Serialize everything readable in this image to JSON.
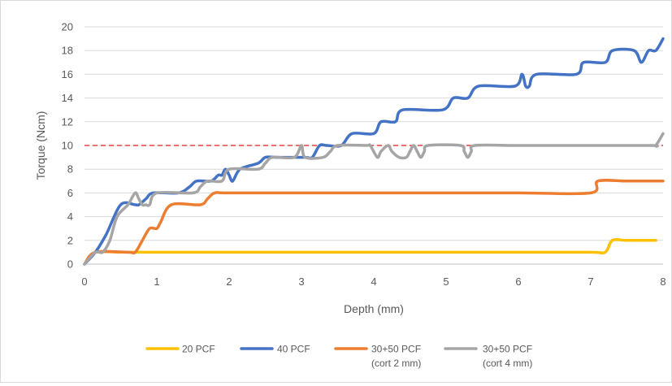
{
  "chart_data": {
    "type": "line",
    "xlabel": "Depth (mm)",
    "ylabel": "Torque (Ncm)",
    "xlim": [
      0,
      8
    ],
    "ylim": [
      0,
      20
    ],
    "x_ticks": [
      "0",
      "1",
      "2",
      "3",
      "4",
      "5",
      "6",
      "7",
      "8"
    ],
    "y_ticks": [
      "0",
      "2",
      "4",
      "6",
      "8",
      "10",
      "12",
      "14",
      "16",
      "18",
      "20"
    ],
    "grid": "horizontal",
    "legend_position": "bottom",
    "reference_line": {
      "y": 10,
      "color": "#e04040",
      "style": "dashed"
    },
    "series": [
      {
        "name": "20 PCF",
        "legend_line1": "20 PCF",
        "legend_line2": "",
        "color": "#ffc000",
        "points": [
          [
            0,
            0
          ],
          [
            0.15,
            1
          ],
          [
            0.5,
            1
          ],
          [
            1,
            1
          ],
          [
            2,
            1
          ],
          [
            3,
            1
          ],
          [
            4,
            1
          ],
          [
            5,
            1
          ],
          [
            6,
            1
          ],
          [
            7,
            1
          ],
          [
            7.2,
            1
          ],
          [
            7.3,
            2
          ],
          [
            7.5,
            2
          ],
          [
            7.9,
            2
          ]
        ]
      },
      {
        "name": "40 PCF",
        "legend_line1": "40 PCF",
        "legend_line2": "",
        "color": "#4472c4",
        "points": [
          [
            0,
            0
          ],
          [
            0.15,
            1
          ],
          [
            0.3,
            2.5
          ],
          [
            0.5,
            5
          ],
          [
            0.7,
            5
          ],
          [
            0.75,
            5
          ],
          [
            0.85,
            5.5
          ],
          [
            0.95,
            6
          ],
          [
            1.3,
            6
          ],
          [
            1.45,
            6.5
          ],
          [
            1.55,
            7
          ],
          [
            1.75,
            7
          ],
          [
            1.85,
            7.5
          ],
          [
            1.9,
            7.5
          ],
          [
            1.95,
            8
          ],
          [
            2.0,
            7.5
          ],
          [
            2.05,
            7
          ],
          [
            2.15,
            8
          ],
          [
            2.4,
            8.5
          ],
          [
            2.5,
            9
          ],
          [
            2.65,
            9
          ],
          [
            2.75,
            9
          ],
          [
            3.05,
            9
          ],
          [
            3.15,
            9
          ],
          [
            3.25,
            10
          ],
          [
            3.35,
            10
          ],
          [
            3.55,
            10
          ],
          [
            3.7,
            11
          ],
          [
            4.0,
            11
          ],
          [
            4.1,
            12
          ],
          [
            4.3,
            12
          ],
          [
            4.4,
            13
          ],
          [
            4.95,
            13
          ],
          [
            5.1,
            14
          ],
          [
            5.3,
            14
          ],
          [
            5.45,
            15
          ],
          [
            5.95,
            15
          ],
          [
            6.05,
            16
          ],
          [
            6.1,
            15
          ],
          [
            6.15,
            15
          ],
          [
            6.25,
            16
          ],
          [
            6.8,
            16
          ],
          [
            6.9,
            17
          ],
          [
            7.2,
            17
          ],
          [
            7.3,
            18
          ],
          [
            7.6,
            18
          ],
          [
            7.7,
            17
          ],
          [
            7.8,
            18
          ],
          [
            7.9,
            18
          ],
          [
            8.0,
            19
          ]
        ]
      },
      {
        "name": "30+50 PCF (cort 2 mm)",
        "legend_line1": "30+50 PCF",
        "legend_line2": "(cort 2 mm)",
        "color": "#ed7d31",
        "points": [
          [
            0,
            0
          ],
          [
            0.15,
            1
          ],
          [
            0.6,
            1
          ],
          [
            0.7,
            1
          ],
          [
            0.8,
            2
          ],
          [
            0.9,
            3
          ],
          [
            1.0,
            3
          ],
          [
            1.05,
            3.5
          ],
          [
            1.2,
            5
          ],
          [
            1.6,
            5
          ],
          [
            1.7,
            5.5
          ],
          [
            1.8,
            6
          ],
          [
            2.0,
            6
          ],
          [
            3,
            6
          ],
          [
            4,
            6
          ],
          [
            5,
            6
          ],
          [
            6,
            6
          ],
          [
            7,
            6
          ],
          [
            7.1,
            7
          ],
          [
            7.5,
            7
          ],
          [
            8.0,
            7
          ]
        ]
      },
      {
        "name": "30+50 PCF (cort 4 mm)",
        "legend_line1": "30+50 PCF",
        "legend_line2": "(cort 4 mm)",
        "color": "#a5a5a5",
        "points": [
          [
            0,
            0
          ],
          [
            0.15,
            1
          ],
          [
            0.25,
            1
          ],
          [
            0.35,
            2
          ],
          [
            0.45,
            4
          ],
          [
            0.6,
            5
          ],
          [
            0.7,
            6
          ],
          [
            0.75,
            5.5
          ],
          [
            0.8,
            5
          ],
          [
            0.85,
            5
          ],
          [
            0.9,
            5
          ],
          [
            1.0,
            6
          ],
          [
            1.5,
            6
          ],
          [
            1.6,
            6.5
          ],
          [
            1.7,
            7
          ],
          [
            1.9,
            7
          ],
          [
            2.0,
            8
          ],
          [
            2.4,
            8
          ],
          [
            2.5,
            8.5
          ],
          [
            2.6,
            9
          ],
          [
            2.9,
            9
          ],
          [
            3.0,
            10
          ],
          [
            3.05,
            9
          ],
          [
            3.3,
            9
          ],
          [
            3.4,
            9.5
          ],
          [
            3.5,
            10
          ],
          [
            3.9,
            10
          ],
          [
            3.95,
            10
          ],
          [
            4.05,
            9
          ],
          [
            4.1,
            9.5
          ],
          [
            4.2,
            10
          ],
          [
            4.25,
            9.5
          ],
          [
            4.35,
            9
          ],
          [
            4.45,
            9
          ],
          [
            4.5,
            9.5
          ],
          [
            4.55,
            10
          ],
          [
            4.6,
            9.5
          ],
          [
            4.65,
            9
          ],
          [
            4.7,
            9.5
          ],
          [
            4.75,
            10
          ],
          [
            5.2,
            10
          ],
          [
            5.25,
            9.5
          ],
          [
            5.3,
            9
          ],
          [
            5.35,
            9.5
          ],
          [
            5.4,
            10
          ],
          [
            6,
            10
          ],
          [
            7,
            10
          ],
          [
            7.85,
            10
          ],
          [
            7.9,
            10
          ],
          [
            8.0,
            11
          ]
        ]
      }
    ]
  }
}
